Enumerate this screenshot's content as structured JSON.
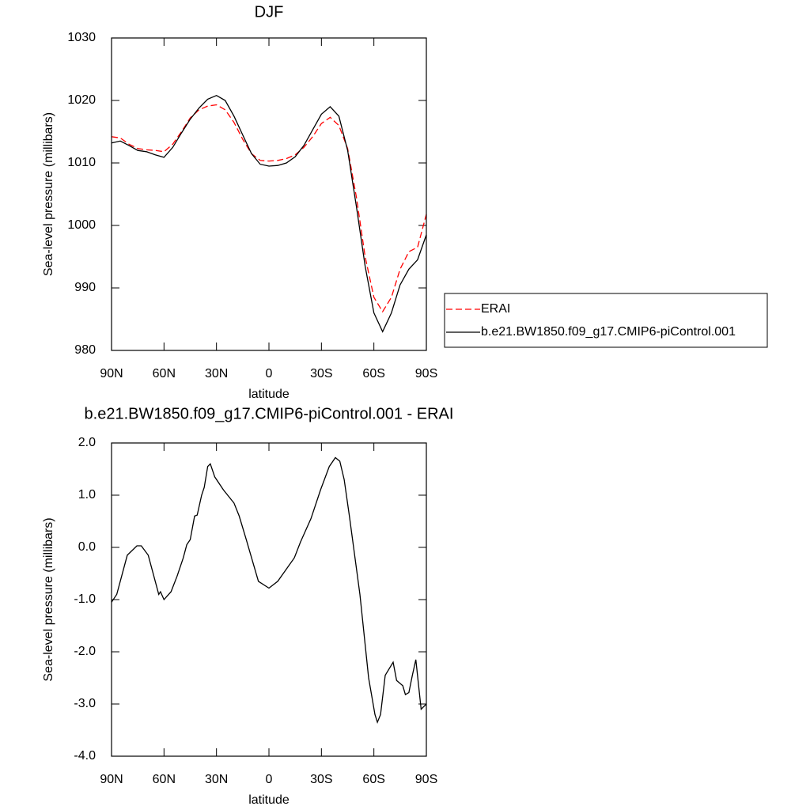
{
  "chart_data": [
    {
      "type": "line",
      "title": "DJF",
      "xlabel": "latitude",
      "ylabel": "Sea-level pressure (millibars)",
      "x": [
        90,
        85,
        80,
        75,
        70,
        65,
        60,
        55,
        50,
        45,
        40,
        35,
        30,
        25,
        20,
        15,
        10,
        5,
        0,
        -5,
        -10,
        -15,
        -20,
        -25,
        -30,
        -35,
        -40,
        -45,
        -50,
        -55,
        -60,
        -65,
        -70,
        -75,
        -80,
        -85,
        -90
      ],
      "series": [
        {
          "name": "ERAI",
          "color": "#ff0000",
          "line_style": "dashed",
          "values": [
            1014.2,
            1014.0,
            1013.0,
            1012.3,
            1012.1,
            1012.0,
            1011.8,
            1013.0,
            1015.0,
            1017.2,
            1018.5,
            1019.1,
            1019.3,
            1018.5,
            1016.5,
            1013.8,
            1011.5,
            1010.4,
            1010.3,
            1010.4,
            1010.7,
            1011.3,
            1012.5,
            1014.2,
            1016.3,
            1017.3,
            1016.0,
            1012.3,
            1004.5,
            995,
            988.5,
            986.2,
            988.5,
            993,
            995.8,
            996.5,
            1001.8
          ]
        },
        {
          "name": "b.e21.BW1850.f09_g17.CMIP6-piControl.001",
          "color": "#000000",
          "line_style": "solid",
          "values": [
            1013.2,
            1013.5,
            1012.8,
            1012.0,
            1011.8,
            1011.3,
            1010.9,
            1012.5,
            1014.8,
            1017.0,
            1018.8,
            1020.2,
            1020.8,
            1020.0,
            1017.5,
            1014.5,
            1011.5,
            1009.8,
            1009.5,
            1009.6,
            1010.0,
            1011.0,
            1012.8,
            1015.3,
            1017.8,
            1019.0,
            1017.5,
            1012.0,
            1003,
            993.5,
            986,
            983,
            986,
            990.5,
            993,
            994.5,
            998.5
          ]
        }
      ],
      "xlim": [
        90,
        -90
      ],
      "xticks": [
        {
          "value": 90,
          "label": "90N"
        },
        {
          "value": 60,
          "label": "60N"
        },
        {
          "value": 30,
          "label": "30N"
        },
        0,
        {
          "value": -30,
          "label": "30S"
        },
        {
          "value": -60,
          "label": "60S"
        },
        {
          "value": -90,
          "label": "90S"
        }
      ],
      "ylim": [
        980,
        1030
      ],
      "yticks": [
        980,
        990,
        1000,
        1010,
        1020,
        1030
      ],
      "legend": "right"
    },
    {
      "type": "line",
      "title": "b.e21.BW1850.f09_g17.CMIP6-piControl.001 - ERAI",
      "xlabel": "latitude",
      "ylabel": "Sea-level pressure (millibars)",
      "x": [
        90,
        87,
        81,
        75.5,
        73,
        69,
        63,
        62,
        60,
        56,
        52.5,
        49,
        47,
        45,
        42.5,
        41,
        38.5,
        37,
        35,
        33.5,
        31,
        26,
        20,
        17,
        13,
        6,
        0,
        -5,
        -14.5,
        -18,
        -24,
        -29.5,
        -34.5,
        -38,
        -40.5,
        -43,
        -46,
        -52,
        -57,
        -60.6,
        -62,
        -63.8,
        -66.5,
        -71,
        -73,
        -76.5,
        -78,
        -80,
        -82,
        -84,
        -87,
        -90
      ],
      "color": "#000000",
      "values": [
        -1.05,
        -0.9,
        -0.15,
        0.03,
        0.03,
        -0.15,
        -0.9,
        -0.85,
        -1.0,
        -0.85,
        -0.55,
        -0.2,
        0.05,
        0.15,
        0.6,
        0.62,
        1.0,
        1.15,
        1.55,
        1.6,
        1.35,
        1.1,
        0.85,
        0.6,
        0.15,
        -0.65,
        -0.78,
        -0.65,
        -0.2,
        0.1,
        0.55,
        1.1,
        1.55,
        1.72,
        1.65,
        1.3,
        0.6,
        -0.9,
        -2.5,
        -3.2,
        -3.35,
        -3.2,
        -2.45,
        -2.2,
        -2.55,
        -2.65,
        -2.82,
        -2.78,
        -2.45,
        -2.15,
        -3.1,
        -3.0
      ],
      "xlim": [
        90,
        -90
      ],
      "xticks": [
        {
          "value": 90,
          "label": "90N"
        },
        {
          "value": 60,
          "label": "60N"
        },
        {
          "value": 30,
          "label": "30N"
        },
        0,
        {
          "value": -30,
          "label": "30S"
        },
        {
          "value": -60,
          "label": "60S"
        },
        {
          "value": -90,
          "label": "90S"
        }
      ],
      "ylim": [
        -4,
        2
      ],
      "yticks": [
        {
          "value": -4,
          "label": "-4.0"
        },
        {
          "value": -3,
          "label": "-3.0"
        },
        {
          "value": -2,
          "label": "-2.0"
        },
        {
          "value": -1,
          "label": "-1.0"
        },
        {
          "value": 0,
          "label": "0.0"
        },
        {
          "value": 1,
          "label": "1.0"
        },
        {
          "value": 2,
          "label": "2.0"
        }
      ]
    }
  ]
}
